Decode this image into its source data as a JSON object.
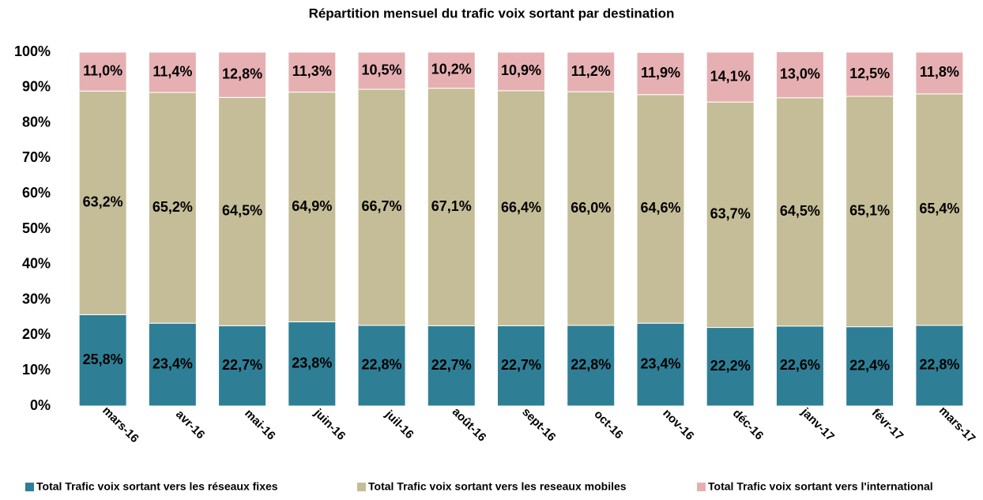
{
  "chart_data": {
    "type": "stacked_bar",
    "title": "Répartition mensuel du trafic voix  sortant par destination",
    "categories": [
      "mars-16",
      "avr-16",
      "mai-16",
      "juin-16",
      "juil-16",
      "août-16",
      "sept-16",
      "oct-16",
      "nov-16",
      "déc-16",
      "janv-17",
      "févr-17",
      "mars-17"
    ],
    "series": [
      {
        "name": "Total Trafic voix sortant  vers les réseaux fixes",
        "color": "#2e7f96",
        "values": [
          25.8,
          23.4,
          22.7,
          23.8,
          22.8,
          22.7,
          22.7,
          22.8,
          23.4,
          22.2,
          22.6,
          22.4,
          22.8
        ],
        "value_labels": [
          "25,8%",
          "23,4%",
          "22,7%",
          "23,8%",
          "22,8%",
          "22,7%",
          "22,7%",
          "22,8%",
          "23,4%",
          "22,2%",
          "22,6%",
          "22,4%",
          "22,8%"
        ]
      },
      {
        "name": "Total Trafic voix sortant vers les reseaux mobiles",
        "color": "#c4bd97",
        "values": [
          63.2,
          65.2,
          64.5,
          64.9,
          66.7,
          67.1,
          66.4,
          66.0,
          64.6,
          63.7,
          64.5,
          65.1,
          65.4
        ],
        "value_labels": [
          "63,2%",
          "65,2%",
          "64,5%",
          "64,9%",
          "66,7%",
          "67,1%",
          "66,4%",
          "66,0%",
          "64,6%",
          "63,7%",
          "64,5%",
          "65,1%",
          "65,4%"
        ]
      },
      {
        "name": "Total Trafic voix sortant vers l'international",
        "color": "#e6b0b3",
        "values": [
          11.0,
          11.4,
          12.8,
          11.3,
          10.5,
          10.2,
          10.9,
          11.2,
          11.9,
          14.1,
          13.0,
          12.5,
          11.8
        ],
        "value_labels": [
          "11,0%",
          "11,4%",
          "12,8%",
          "11,3%",
          "10,5%",
          "10,2%",
          "10,9%",
          "11,2%",
          "11,9%",
          "14,1%",
          "13,0%",
          "12,5%",
          "11,8%"
        ]
      }
    ],
    "ylim": [
      0,
      100
    ],
    "yticks": [
      {
        "value": 0,
        "label": "0%"
      },
      {
        "value": 10,
        "label": "10%"
      },
      {
        "value": 20,
        "label": "20%"
      },
      {
        "value": 30,
        "label": "30%"
      },
      {
        "value": 40,
        "label": "40%"
      },
      {
        "value": 50,
        "label": "50%"
      },
      {
        "value": 60,
        "label": "60%"
      },
      {
        "value": 70,
        "label": "70%"
      },
      {
        "value": 80,
        "label": "80%"
      },
      {
        "value": 90,
        "label": "90%"
      },
      {
        "value": 100,
        "label": "100%"
      }
    ],
    "legend": "bottom"
  }
}
